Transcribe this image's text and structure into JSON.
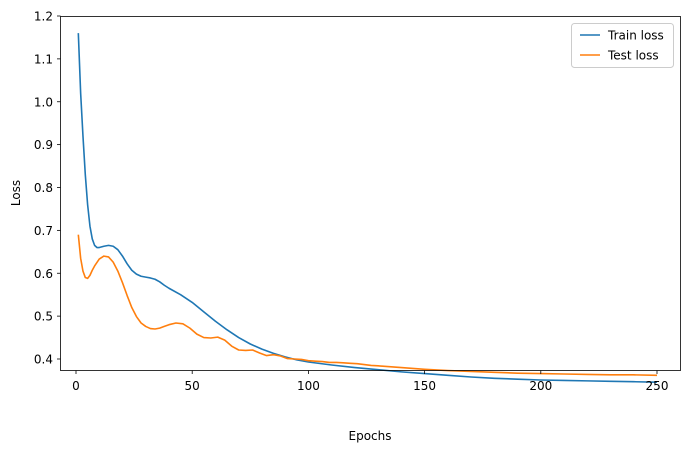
{
  "chart_data": {
    "type": "line",
    "title": "",
    "xlabel": "Epochs",
    "ylabel": "Loss",
    "xlim": [
      -10,
      261
    ],
    "ylim": [
      0.325,
      1.2
    ],
    "xticks": [
      0,
      50,
      100,
      150,
      200,
      250
    ],
    "yticks": [
      0.4,
      0.5,
      0.6,
      0.7,
      0.8,
      0.9,
      1.0,
      1.1,
      1.2
    ],
    "xtick_labels": [
      "0",
      "50",
      "100",
      "150",
      "200",
      "250"
    ],
    "ytick_labels": [
      "0.4",
      "0.5",
      "0.6",
      "0.7",
      "0.8",
      "0.9",
      "1.0",
      "1.1",
      "1.2"
    ],
    "grid": false,
    "legend_position": "upper right",
    "series": [
      {
        "name": "Train loss",
        "color": "#1f77b4",
        "x": [
          1,
          2,
          3,
          4,
          5,
          6,
          7,
          8,
          9,
          10,
          12,
          14,
          16,
          18,
          20,
          22,
          24,
          26,
          28,
          30,
          32,
          34,
          36,
          38,
          40,
          45,
          50,
          55,
          60,
          65,
          70,
          75,
          80,
          85,
          90,
          95,
          100,
          110,
          120,
          130,
          140,
          150,
          160,
          170,
          180,
          190,
          200,
          210,
          220,
          230,
          240,
          250
        ],
        "values": [
          1.16,
          1.02,
          0.92,
          0.83,
          0.76,
          0.71,
          0.68,
          0.665,
          0.66,
          0.66,
          0.663,
          0.665,
          0.663,
          0.655,
          0.64,
          0.622,
          0.607,
          0.598,
          0.593,
          0.591,
          0.589,
          0.586,
          0.58,
          0.572,
          0.565,
          0.55,
          0.532,
          0.51,
          0.488,
          0.468,
          0.45,
          0.435,
          0.423,
          0.413,
          0.405,
          0.398,
          0.393,
          0.386,
          0.38,
          0.375,
          0.37,
          0.366,
          0.362,
          0.358,
          0.355,
          0.353,
          0.351,
          0.35,
          0.349,
          0.348,
          0.347,
          0.346
        ]
      },
      {
        "name": "Test loss",
        "color": "#ff7f0e",
        "x": [
          1,
          2,
          3,
          4,
          5,
          6,
          7,
          8,
          10,
          12,
          14,
          16,
          18,
          20,
          22,
          24,
          26,
          28,
          30,
          32,
          34,
          36,
          38,
          40,
          43,
          46,
          49,
          52,
          55,
          58,
          61,
          64,
          67,
          70,
          73,
          76,
          79,
          82,
          85,
          88,
          91,
          94,
          97,
          100,
          103,
          106,
          109,
          112,
          115,
          118,
          121,
          124,
          127,
          130,
          140,
          150,
          160,
          170,
          180,
          190,
          200,
          210,
          220,
          230,
          240,
          250
        ],
        "values": [
          0.69,
          0.635,
          0.605,
          0.59,
          0.588,
          0.595,
          0.607,
          0.617,
          0.633,
          0.64,
          0.638,
          0.626,
          0.605,
          0.578,
          0.548,
          0.52,
          0.499,
          0.484,
          0.476,
          0.471,
          0.47,
          0.472,
          0.476,
          0.48,
          0.484,
          0.482,
          0.472,
          0.458,
          0.45,
          0.449,
          0.451,
          0.444,
          0.43,
          0.421,
          0.42,
          0.421,
          0.414,
          0.408,
          0.41,
          0.407,
          0.401,
          0.4,
          0.399,
          0.396,
          0.395,
          0.394,
          0.392,
          0.392,
          0.391,
          0.39,
          0.389,
          0.387,
          0.385,
          0.384,
          0.38,
          0.376,
          0.373,
          0.371,
          0.369,
          0.367,
          0.366,
          0.365,
          0.364,
          0.363,
          0.363,
          0.362
        ]
      }
    ]
  }
}
